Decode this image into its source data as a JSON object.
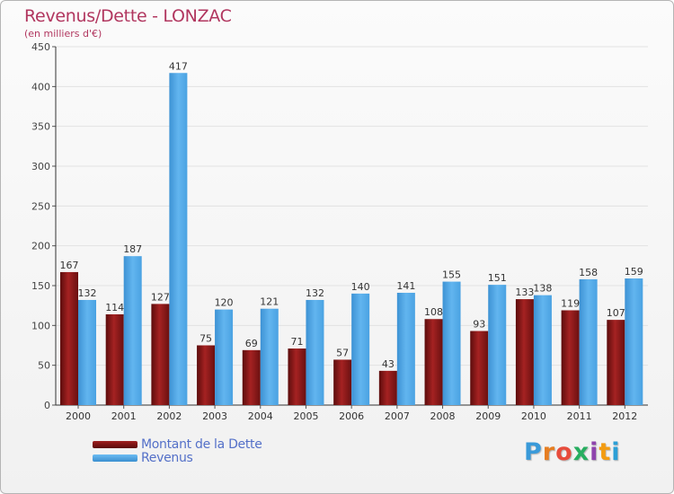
{
  "header": {
    "title": "Revenus/Dette - LONZAC",
    "subtitle": "(en milliers d'€)"
  },
  "legend": {
    "debt_label": "Montant de la Dette",
    "revenue_label": "Revenus"
  },
  "logo": {
    "letters": [
      "P",
      "r",
      "o",
      "x",
      "i",
      "t",
      "i"
    ],
    "colors": [
      "#3a9ad9",
      "#e67e22",
      "#e74c3c",
      "#27ae60",
      "#8e44ad",
      "#f39c12",
      "#2c9fd6"
    ]
  },
  "colors": {
    "debt": "#7a1414",
    "revenue": "#4fa6e6",
    "title": "#b1365f",
    "legend_text": "#5470c8"
  },
  "chart_data": {
    "type": "bar",
    "title": "Revenus/Dette - LONZAC",
    "subtitle": "(en milliers d'€)",
    "categories": [
      "2000",
      "2001",
      "2002",
      "2003",
      "2004",
      "2005",
      "2006",
      "2007",
      "2008",
      "2009",
      "2010",
      "2011",
      "2012"
    ],
    "series": [
      {
        "name": "Montant de la Dette",
        "values": [
          167,
          114,
          127,
          75,
          69,
          71,
          57,
          43,
          108,
          93,
          133,
          119,
          107
        ]
      },
      {
        "name": "Revenus",
        "values": [
          132,
          187,
          417,
          120,
          121,
          132,
          140,
          141,
          155,
          151,
          138,
          158,
          159
        ]
      }
    ],
    "yticks": [
      0,
      50,
      100,
      150,
      200,
      250,
      300,
      350,
      400,
      450
    ],
    "ylim": [
      0,
      450
    ],
    "grid": true,
    "legend_position": "bottom-left"
  }
}
